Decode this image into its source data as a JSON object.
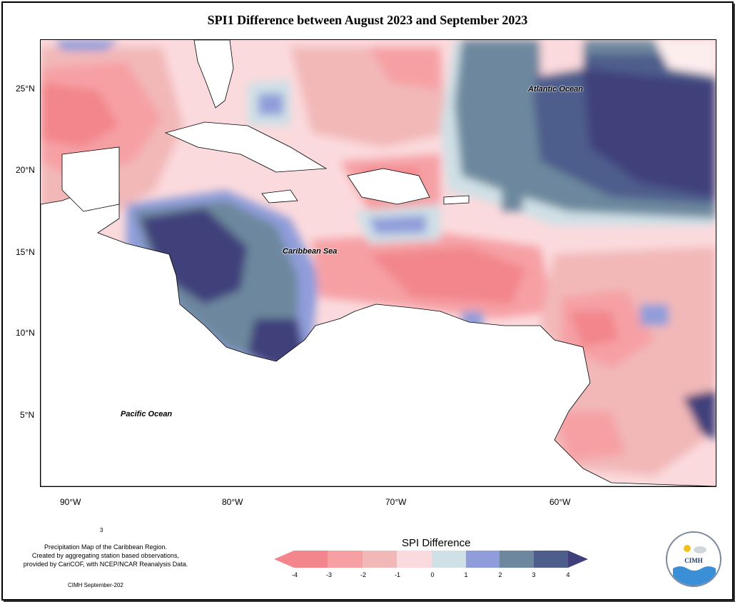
{
  "title": "SPI1 Difference between August 2023 and September 2023",
  "map": {
    "lat_ticks": [
      "25°N",
      "20°N",
      "15°N",
      "10°N",
      "5°N"
    ],
    "lon_ticks": [
      "90°W",
      "80°W",
      "70°W",
      "60°W"
    ],
    "labels": {
      "atlantic": "Atlantic Ocean",
      "caribbean": "Caribbean Sea",
      "pacific": "Pacific Ocean"
    }
  },
  "legend": {
    "title": "SPI Difference",
    "tick_labels": [
      "-4",
      "-3",
      "-2",
      "-1",
      "0",
      "1",
      "2",
      "3",
      "4"
    ],
    "colors": [
      "#f2868c",
      "#f6a0a4",
      "#f2b8b8",
      "#fbdadd",
      "#fdeeee",
      "#cfe0e6",
      "#8f9dda",
      "#6d889e",
      "#4d5d8c",
      "#3f3f7a"
    ]
  },
  "credits": {
    "line1": "Precipitation Map of the Caribbean Region.",
    "line2": "Created by aggregating station based observations,",
    "line3": "provided by CariCOF, with NCEP/NCAR Reanalysis Data.",
    "footer": "CIMH September-202",
    "small_mark": "3"
  },
  "logo": {
    "text": "CIMH"
  }
}
